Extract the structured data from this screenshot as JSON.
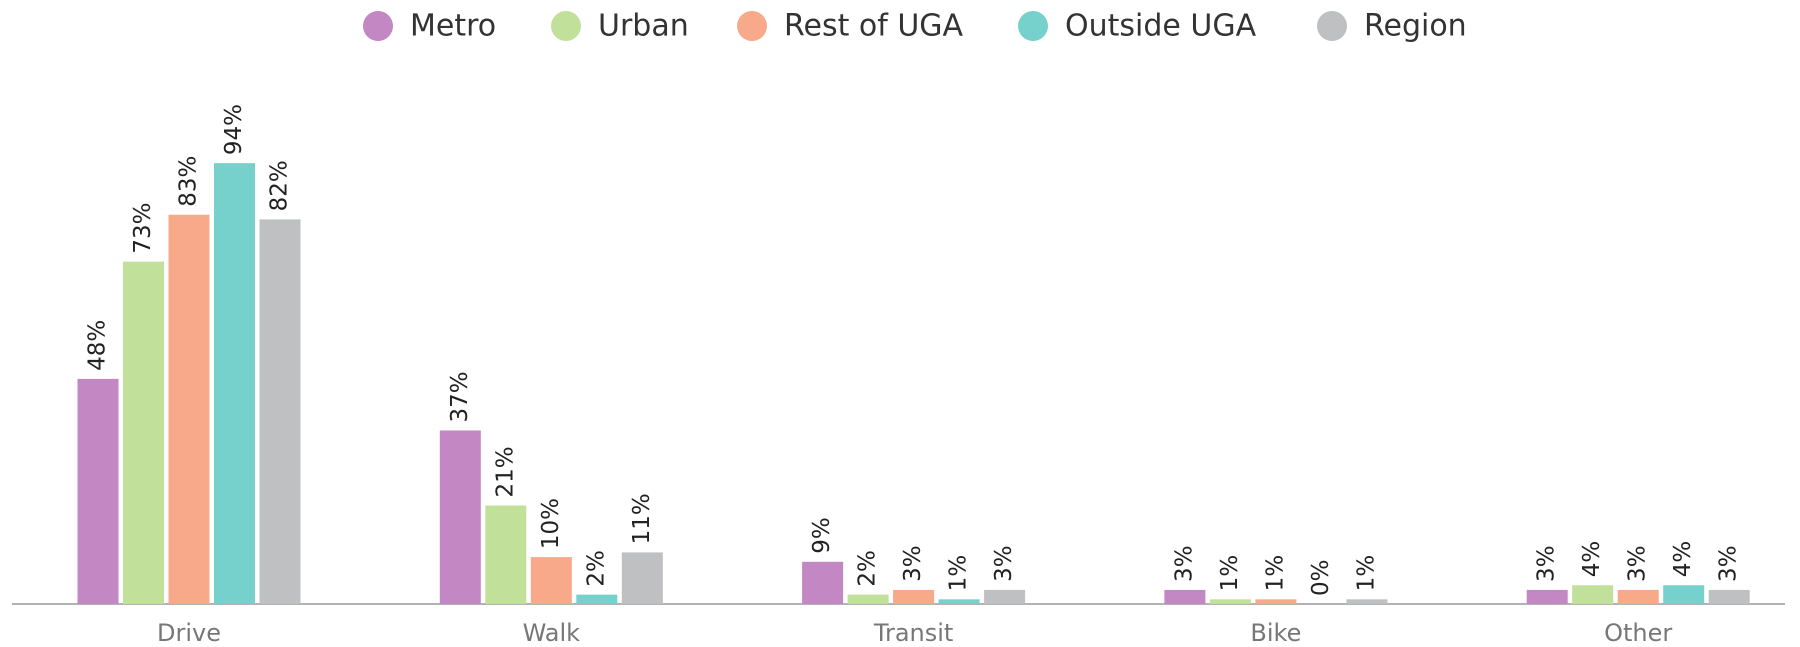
{
  "chart_data": {
    "type": "bar",
    "categories": [
      "Drive",
      "Walk",
      "Transit",
      "Bike",
      "Other"
    ],
    "series": [
      {
        "name": "Metro",
        "color": "#c387c3",
        "values": [
          48,
          37,
          9,
          3,
          3
        ],
        "value_labels": [
          "48%",
          "37%",
          "9%",
          "3%",
          "3%"
        ]
      },
      {
        "name": "Urban",
        "color": "#c1e09a",
        "values": [
          73,
          21,
          2,
          1,
          4
        ],
        "value_labels": [
          "73%",
          "21%",
          "2%",
          "1%",
          "4%"
        ]
      },
      {
        "name": "Rest of UGA",
        "color": "#f7a98a",
        "values": [
          83,
          10,
          3,
          1,
          3
        ],
        "value_labels": [
          "83%",
          "10%",
          "3%",
          "1%",
          "3%"
        ]
      },
      {
        "name": "Outside UGA",
        "color": "#76d1cc",
        "values": [
          94,
          2,
          1,
          0,
          4
        ],
        "value_labels": [
          "94%",
          "2%",
          "1%",
          "0%",
          "4%"
        ]
      },
      {
        "name": "Region",
        "color": "#bfc0c2",
        "values": [
          82,
          11,
          3,
          1,
          3
        ],
        "value_labels": [
          "82%",
          "11%",
          "3%",
          "1%",
          "3%"
        ]
      }
    ],
    "legend": "top"
  }
}
